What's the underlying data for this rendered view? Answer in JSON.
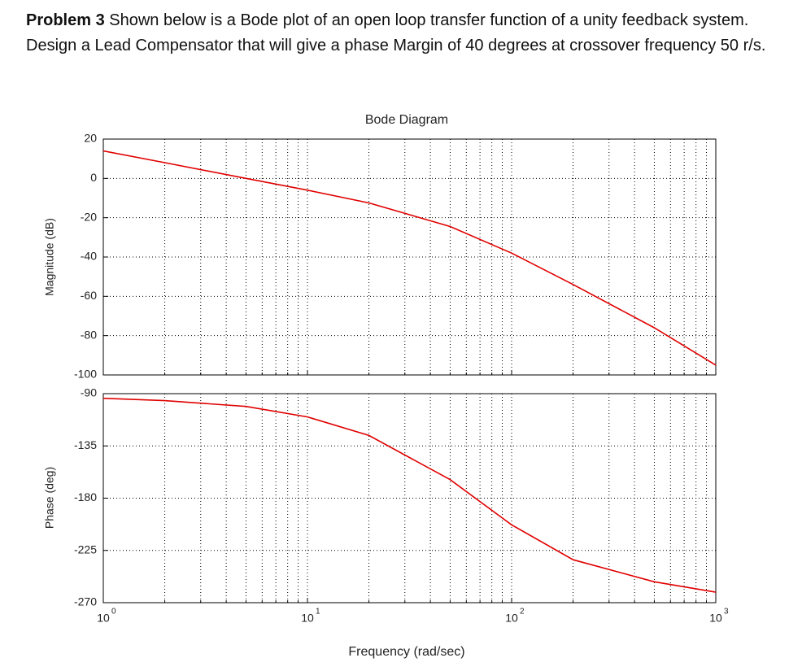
{
  "problem": {
    "label": "Problem 3",
    "text": "Shown below is a Bode plot of an open loop transfer function of a unity feedback system. Design a Lead Compensator that will give a phase Margin of 40 degrees at crossover frequency 50 r/s."
  },
  "chart_data": [
    {
      "type": "line",
      "title": "Bode Diagram",
      "ylabel": "Magnitude (dB)",
      "x": [
        1,
        2,
        5,
        10,
        20,
        50,
        100,
        200,
        500,
        1000
      ],
      "values": [
        14,
        8,
        0,
        -6,
        -12.5,
        -24.5,
        -38,
        -54,
        -76,
        -95
      ],
      "color": "#e00000",
      "xscale": "log",
      "xlim": [
        1,
        1000
      ],
      "ylim": [
        -100,
        20
      ],
      "yticks": [
        20,
        0,
        -20,
        -40,
        -60,
        -80,
        -100
      ],
      "grid": true
    },
    {
      "type": "line",
      "ylabel": "Phase (deg)",
      "xlabel": "Frequency  (rad/sec)",
      "x": [
        1,
        2,
        5,
        10,
        20,
        50,
        100,
        200,
        500,
        1000
      ],
      "values": [
        -94,
        -96,
        -101,
        -110,
        -126,
        -164,
        -203,
        -233,
        -252,
        -261
      ],
      "color": "#e00000",
      "xscale": "log",
      "xlim": [
        1,
        1000
      ],
      "xticks": [
        {
          "value": 1,
          "label": "10",
          "exponent": "0"
        },
        {
          "value": 10,
          "label": "10",
          "exponent": "1"
        },
        {
          "value": 100,
          "label": "10",
          "exponent": "2"
        },
        {
          "value": 1000,
          "label": "10",
          "exponent": "3"
        }
      ],
      "ylim": [
        -270,
        -90
      ],
      "yticks": [
        -90,
        -135,
        -180,
        -225,
        -270
      ],
      "grid": true
    }
  ]
}
